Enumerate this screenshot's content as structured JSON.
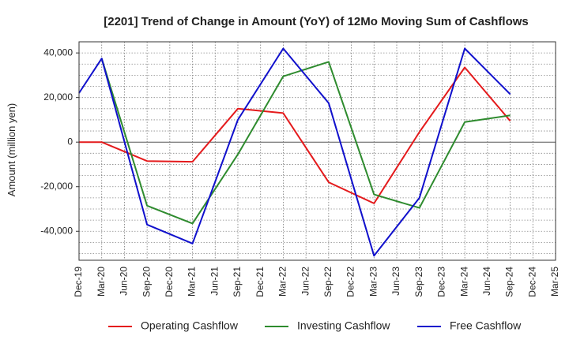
{
  "chart_data": {
    "type": "line",
    "title": "[2201]  Trend of Change in Amount (YoY) of 12Mo Moving Sum of Cashflows",
    "xlabel": "",
    "ylabel": "Amount (million yen)",
    "ylim": [
      -53000,
      45000
    ],
    "yticks": [
      40000,
      20000,
      0,
      -20000,
      -40000
    ],
    "ytick_labels": [
      "40,000",
      "20,000",
      "0",
      "-20,000",
      "-40,000"
    ],
    "categories": [
      "Dec-19",
      "Mar-20",
      "Jun-20",
      "Sep-20",
      "Dec-20",
      "Mar-21",
      "Jun-21",
      "Sep-21",
      "Dec-21",
      "Mar-22",
      "Jun-22",
      "Sep-22",
      "Dec-22",
      "Mar-23",
      "Jun-23",
      "Sep-23",
      "Dec-23",
      "Mar-24",
      "Jun-24",
      "Sep-24",
      "Dec-24",
      "Mar-25"
    ],
    "grid": true,
    "legend_position": "bottom",
    "series": [
      {
        "name": "Operating Cashflow",
        "color": "#e41a1c",
        "values": [
          0,
          0,
          null,
          -8500,
          null,
          -8800,
          null,
          15000,
          null,
          13000,
          null,
          -18000,
          null,
          -27500,
          null,
          4500,
          null,
          33500,
          null,
          9500,
          null,
          null
        ]
      },
      {
        "name": "Investing Cashflow",
        "color": "#2e8b2e",
        "values": [
          null,
          37500,
          null,
          -28500,
          null,
          -36500,
          null,
          -5500,
          null,
          29500,
          null,
          36000,
          null,
          -23500,
          null,
          -29500,
          null,
          9000,
          null,
          12000,
          null,
          null
        ]
      },
      {
        "name": "Free Cashflow",
        "color": "#1010cc",
        "values": [
          22000,
          37500,
          null,
          -37000,
          null,
          -45500,
          null,
          10000,
          null,
          42000,
          null,
          17500,
          null,
          -51000,
          null,
          -25000,
          null,
          42000,
          null,
          21500,
          null,
          null
        ]
      }
    ]
  }
}
